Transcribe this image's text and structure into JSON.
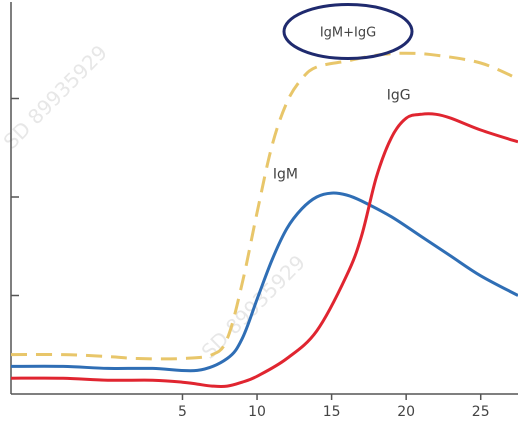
{
  "chart_data": {
    "type": "line",
    "title": "",
    "xlabel": "",
    "ylabel": "",
    "xlim": [
      -6.5,
      27.5
    ],
    "ylim": [
      0,
      100
    ],
    "x_ticks": [
      5,
      10,
      15,
      20,
      25
    ],
    "x_tick_labels": [
      "5",
      "10",
      "15",
      "20",
      "25"
    ],
    "y_ticks": [
      25,
      50,
      75
    ],
    "grid": false,
    "legend": "none",
    "series": [
      {
        "name": "IgM+IgG",
        "color": "#e8c66a",
        "style": "dashed",
        "points": [
          [
            -6.5,
            10
          ],
          [
            -3,
            10
          ],
          [
            0,
            9.5
          ],
          [
            2,
            9
          ],
          [
            5,
            9
          ],
          [
            7,
            10
          ],
          [
            8,
            14
          ],
          [
            9,
            28
          ],
          [
            10,
            46
          ],
          [
            11,
            63
          ],
          [
            12,
            74
          ],
          [
            13,
            80
          ],
          [
            14,
            83
          ],
          [
            16,
            84.5
          ],
          [
            18,
            86
          ],
          [
            20,
            86.5
          ],
          [
            22,
            86
          ],
          [
            25,
            84
          ],
          [
            27.5,
            80
          ]
        ]
      },
      {
        "name": "IgM",
        "color": "#2f6eb5",
        "style": "solid",
        "points": [
          [
            -6.5,
            7
          ],
          [
            -3,
            7
          ],
          [
            0,
            6.5
          ],
          [
            3,
            6.5
          ],
          [
            6,
            6
          ],
          [
            8,
            9
          ],
          [
            9,
            14
          ],
          [
            10,
            24
          ],
          [
            11,
            34
          ],
          [
            12,
            42
          ],
          [
            13,
            47
          ],
          [
            14,
            50
          ],
          [
            15,
            51
          ],
          [
            16,
            50.5
          ],
          [
            17,
            49
          ],
          [
            19,
            45
          ],
          [
            21,
            40
          ],
          [
            23,
            35
          ],
          [
            25,
            30
          ],
          [
            27.5,
            25
          ]
        ]
      },
      {
        "name": "IgG",
        "color": "#e02530",
        "style": "solid",
        "points": [
          [
            -6.5,
            4
          ],
          [
            -3,
            4
          ],
          [
            0,
            3.5
          ],
          [
            3,
            3.5
          ],
          [
            5,
            3
          ],
          [
            6,
            2.5
          ],
          [
            7,
            2
          ],
          [
            8,
            2
          ],
          [
            9,
            3
          ],
          [
            10,
            4.5
          ],
          [
            12,
            9
          ],
          [
            14,
            16
          ],
          [
            16,
            30
          ],
          [
            17,
            40
          ],
          [
            18,
            55
          ],
          [
            19,
            65
          ],
          [
            20,
            70
          ],
          [
            21,
            71
          ],
          [
            22,
            71
          ],
          [
            23,
            70
          ],
          [
            25,
            67
          ],
          [
            27.5,
            64
          ]
        ]
      }
    ],
    "series_labels": [
      {
        "text": "IgM",
        "x": 11.9,
        "y": 56
      },
      {
        "text": "IgG",
        "x": 19.5,
        "y": 76
      },
      {
        "text": "IgM+IgG",
        "x": 16.1,
        "y": 92,
        "circled": true
      }
    ],
    "watermark": "SD 89935929"
  }
}
